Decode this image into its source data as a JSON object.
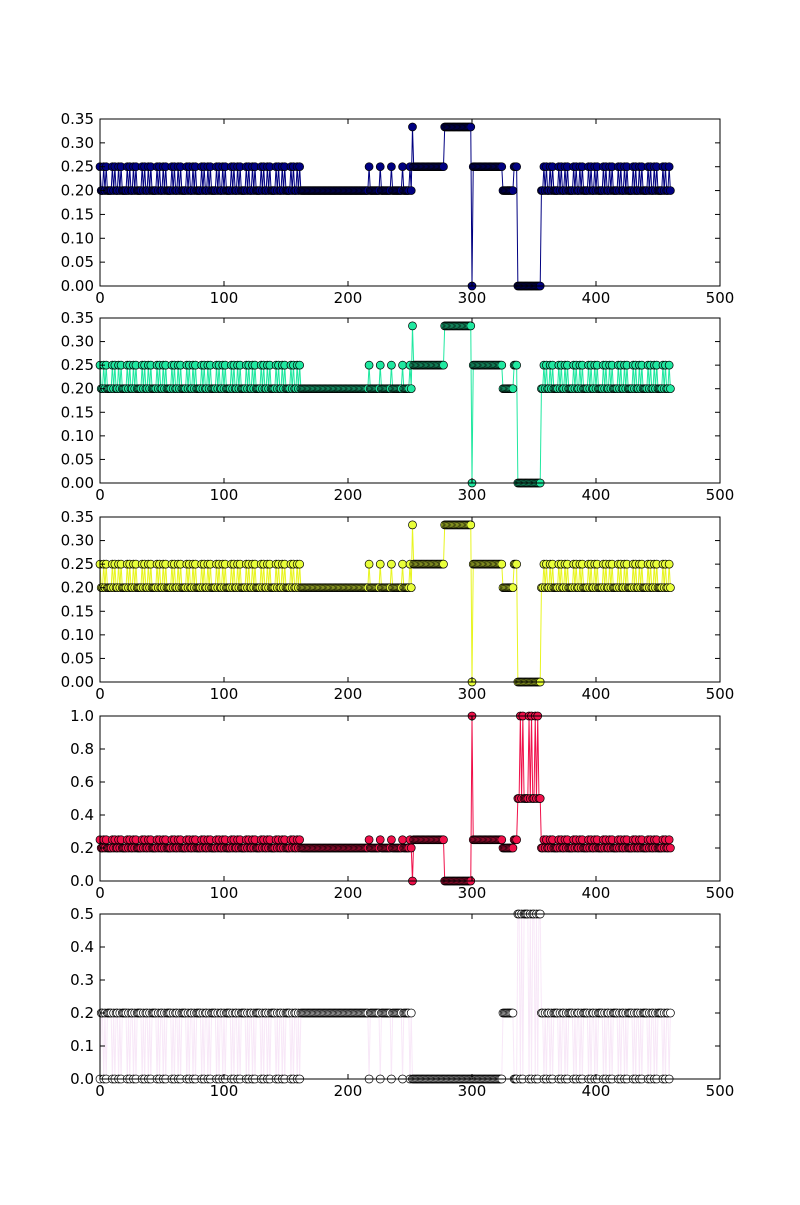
{
  "figure": {
    "background": "#ffffff",
    "layout": "5 vertically stacked subplots sharing the same x range"
  },
  "chart_data": [
    {
      "type": "line",
      "markers": "circle",
      "color": "#000080",
      "line_color": "#000080",
      "marker_fill": "#000080",
      "title": "",
      "xlabel": "",
      "ylabel": "",
      "xlim": [
        0,
        500
      ],
      "ylim": [
        0,
        0.35
      ],
      "xticks": [
        "0",
        "100",
        "200",
        "300",
        "400",
        "500"
      ],
      "yticks": [
        "0.00",
        "0.05",
        "0.10",
        "0.15",
        "0.20",
        "0.25",
        "0.30",
        "0.35"
      ],
      "segments": [
        {
          "x": [
            0,
            165
          ],
          "pattern": "alternate",
          "values": [
            0.2,
            0.25
          ]
        },
        {
          "x": [
            166,
            209
          ],
          "pattern": "constant",
          "values": [
            0.2
          ]
        },
        {
          "x": [
            210,
            245
          ],
          "pattern": "sparse",
          "values": [
            0.2,
            0.25
          ]
        },
        {
          "x": [
            246,
            251
          ],
          "pattern": "alternate",
          "values": [
            0.2,
            0.25
          ]
        },
        {
          "x": [
            252,
            252
          ],
          "pattern": "constant",
          "values": [
            0.3333
          ]
        },
        {
          "x": [
            253,
            277
          ],
          "pattern": "constant",
          "values": [
            0.25
          ]
        },
        {
          "x": [
            278,
            299
          ],
          "pattern": "constant",
          "values": [
            0.3333
          ]
        },
        {
          "x": [
            300,
            300
          ],
          "pattern": "constant",
          "values": [
            0.0
          ]
        },
        {
          "x": [
            301,
            324
          ],
          "pattern": "constant",
          "values": [
            0.25
          ]
        },
        {
          "x": [
            325,
            333
          ],
          "pattern": "constant",
          "values": [
            0.2
          ]
        },
        {
          "x": [
            334,
            336
          ],
          "pattern": "constant",
          "values": [
            0.25
          ]
        },
        {
          "x": [
            337,
            355
          ],
          "pattern": "constant",
          "values": [
            0.0
          ]
        },
        {
          "x": [
            356,
            460
          ],
          "pattern": "alternate",
          "values": [
            0.2,
            0.25
          ]
        }
      ]
    },
    {
      "type": "line",
      "markers": "circle",
      "color": "#20e8a0",
      "line_color": "#20e8a0",
      "marker_fill": "#20e8a0",
      "title": "",
      "xlabel": "",
      "ylabel": "",
      "xlim": [
        0,
        500
      ],
      "ylim": [
        0,
        0.35
      ],
      "xticks": [
        "0",
        "100",
        "200",
        "300",
        "400",
        "500"
      ],
      "yticks": [
        "0.00",
        "0.05",
        "0.10",
        "0.15",
        "0.20",
        "0.25",
        "0.30",
        "0.35"
      ],
      "segments": [
        {
          "x": [
            0,
            165
          ],
          "pattern": "alternate",
          "values": [
            0.2,
            0.25
          ]
        },
        {
          "x": [
            166,
            209
          ],
          "pattern": "constant",
          "values": [
            0.2
          ]
        },
        {
          "x": [
            210,
            245
          ],
          "pattern": "sparse",
          "values": [
            0.2,
            0.25
          ]
        },
        {
          "x": [
            246,
            251
          ],
          "pattern": "alternate",
          "values": [
            0.2,
            0.25
          ]
        },
        {
          "x": [
            252,
            252
          ],
          "pattern": "constant",
          "values": [
            0.3333
          ]
        },
        {
          "x": [
            253,
            277
          ],
          "pattern": "constant",
          "values": [
            0.25
          ]
        },
        {
          "x": [
            278,
            299
          ],
          "pattern": "constant",
          "values": [
            0.3333
          ]
        },
        {
          "x": [
            300,
            300
          ],
          "pattern": "constant",
          "values": [
            0.0
          ]
        },
        {
          "x": [
            301,
            324
          ],
          "pattern": "constant",
          "values": [
            0.25
          ]
        },
        {
          "x": [
            325,
            333
          ],
          "pattern": "constant",
          "values": [
            0.2
          ]
        },
        {
          "x": [
            334,
            336
          ],
          "pattern": "constant",
          "values": [
            0.25
          ]
        },
        {
          "x": [
            337,
            355
          ],
          "pattern": "constant",
          "values": [
            0.0
          ]
        },
        {
          "x": [
            356,
            460
          ],
          "pattern": "alternate",
          "values": [
            0.2,
            0.25
          ]
        }
      ]
    },
    {
      "type": "line",
      "markers": "circle",
      "color": "#e8f520",
      "line_color": "#e8f520",
      "marker_fill": "#e8ff3a",
      "title": "",
      "xlabel": "",
      "ylabel": "",
      "xlim": [
        0,
        500
      ],
      "ylim": [
        0,
        0.35
      ],
      "xticks": [
        "0",
        "100",
        "200",
        "300",
        "400",
        "500"
      ],
      "yticks": [
        "0.00",
        "0.05",
        "0.10",
        "0.15",
        "0.20",
        "0.25",
        "0.30",
        "0.35"
      ],
      "segments": [
        {
          "x": [
            0,
            165
          ],
          "pattern": "alternate",
          "values": [
            0.2,
            0.25
          ]
        },
        {
          "x": [
            166,
            209
          ],
          "pattern": "constant",
          "values": [
            0.2
          ]
        },
        {
          "x": [
            210,
            245
          ],
          "pattern": "sparse",
          "values": [
            0.2,
            0.25
          ]
        },
        {
          "x": [
            246,
            251
          ],
          "pattern": "alternate",
          "values": [
            0.2,
            0.25
          ]
        },
        {
          "x": [
            252,
            252
          ],
          "pattern": "constant",
          "values": [
            0.3333
          ]
        },
        {
          "x": [
            253,
            277
          ],
          "pattern": "constant",
          "values": [
            0.25
          ]
        },
        {
          "x": [
            278,
            299
          ],
          "pattern": "constant",
          "values": [
            0.3333
          ]
        },
        {
          "x": [
            300,
            300
          ],
          "pattern": "constant",
          "values": [
            0.0
          ]
        },
        {
          "x": [
            301,
            324
          ],
          "pattern": "constant",
          "values": [
            0.25
          ]
        },
        {
          "x": [
            325,
            333
          ],
          "pattern": "constant",
          "values": [
            0.2
          ]
        },
        {
          "x": [
            334,
            336
          ],
          "pattern": "constant",
          "values": [
            0.25
          ]
        },
        {
          "x": [
            337,
            355
          ],
          "pattern": "constant",
          "values": [
            0.0
          ]
        },
        {
          "x": [
            356,
            460
          ],
          "pattern": "alternate",
          "values": [
            0.2,
            0.25
          ]
        }
      ]
    },
    {
      "type": "line",
      "markers": "circle",
      "color": "#f0104a",
      "line_color": "#f0104a",
      "marker_fill": "#f0104a",
      "title": "",
      "xlabel": "",
      "ylabel": "",
      "xlim": [
        0,
        500
      ],
      "ylim": [
        0,
        1.0
      ],
      "xticks": [
        "0",
        "100",
        "200",
        "300",
        "400",
        "500"
      ],
      "yticks": [
        "0.0",
        "0.2",
        "0.4",
        "0.6",
        "0.8",
        "1.0"
      ],
      "segments": [
        {
          "x": [
            0,
            165
          ],
          "pattern": "alternate",
          "values": [
            0.2,
            0.25
          ]
        },
        {
          "x": [
            166,
            209
          ],
          "pattern": "constant",
          "values": [
            0.2
          ]
        },
        {
          "x": [
            210,
            245
          ],
          "pattern": "sparse",
          "values": [
            0.2,
            0.25
          ]
        },
        {
          "x": [
            246,
            251
          ],
          "pattern": "alternate",
          "values": [
            0.2,
            0.25
          ]
        },
        {
          "x": [
            252,
            252
          ],
          "pattern": "constant",
          "values": [
            0.0
          ]
        },
        {
          "x": [
            253,
            277
          ],
          "pattern": "constant",
          "values": [
            0.25
          ]
        },
        {
          "x": [
            278,
            299
          ],
          "pattern": "constant",
          "values": [
            0.0
          ]
        },
        {
          "x": [
            300,
            300
          ],
          "pattern": "constant",
          "values": [
            1.0
          ]
        },
        {
          "x": [
            301,
            324
          ],
          "pattern": "constant",
          "values": [
            0.25
          ]
        },
        {
          "x": [
            325,
            333
          ],
          "pattern": "constant",
          "values": [
            0.2
          ]
        },
        {
          "x": [
            334,
            336
          ],
          "pattern": "constant",
          "values": [
            0.25
          ]
        },
        {
          "x": [
            337,
            355
          ],
          "pattern": "alternate",
          "values": [
            0.5,
            1.0
          ]
        },
        {
          "x": [
            356,
            460
          ],
          "pattern": "alternate",
          "values": [
            0.2,
            0.25
          ]
        }
      ]
    },
    {
      "type": "line",
      "markers": "circle",
      "color": "#ffffff",
      "line_color": "#f8e8f8",
      "marker_fill": "#ffffff",
      "title": "",
      "xlabel": "",
      "ylabel": "",
      "xlim": [
        0,
        500
      ],
      "ylim": [
        0,
        0.5
      ],
      "xticks": [
        "0",
        "100",
        "200",
        "300",
        "400",
        "500"
      ],
      "yticks": [
        "0.0",
        "0.1",
        "0.2",
        "0.3",
        "0.4",
        "0.5"
      ],
      "segments": [
        {
          "x": [
            0,
            165
          ],
          "pattern": "alternate",
          "values": [
            0.2,
            0.0
          ]
        },
        {
          "x": [
            166,
            209
          ],
          "pattern": "constant",
          "values": [
            0.2
          ]
        },
        {
          "x": [
            210,
            245
          ],
          "pattern": "sparse",
          "values": [
            0.2,
            0.0
          ]
        },
        {
          "x": [
            246,
            251
          ],
          "pattern": "alternate",
          "values": [
            0.2,
            0.0
          ]
        },
        {
          "x": [
            252,
            324
          ],
          "pattern": "constant",
          "values": [
            0.0
          ]
        },
        {
          "x": [
            325,
            333
          ],
          "pattern": "constant",
          "values": [
            0.2
          ]
        },
        {
          "x": [
            334,
            336
          ],
          "pattern": "constant",
          "values": [
            0.0
          ]
        },
        {
          "x": [
            337,
            355
          ],
          "pattern": "alternate",
          "values": [
            0.5,
            0.0
          ]
        },
        {
          "x": [
            356,
            460
          ],
          "pattern": "alternate",
          "values": [
            0.2,
            0.0
          ]
        }
      ]
    }
  ]
}
